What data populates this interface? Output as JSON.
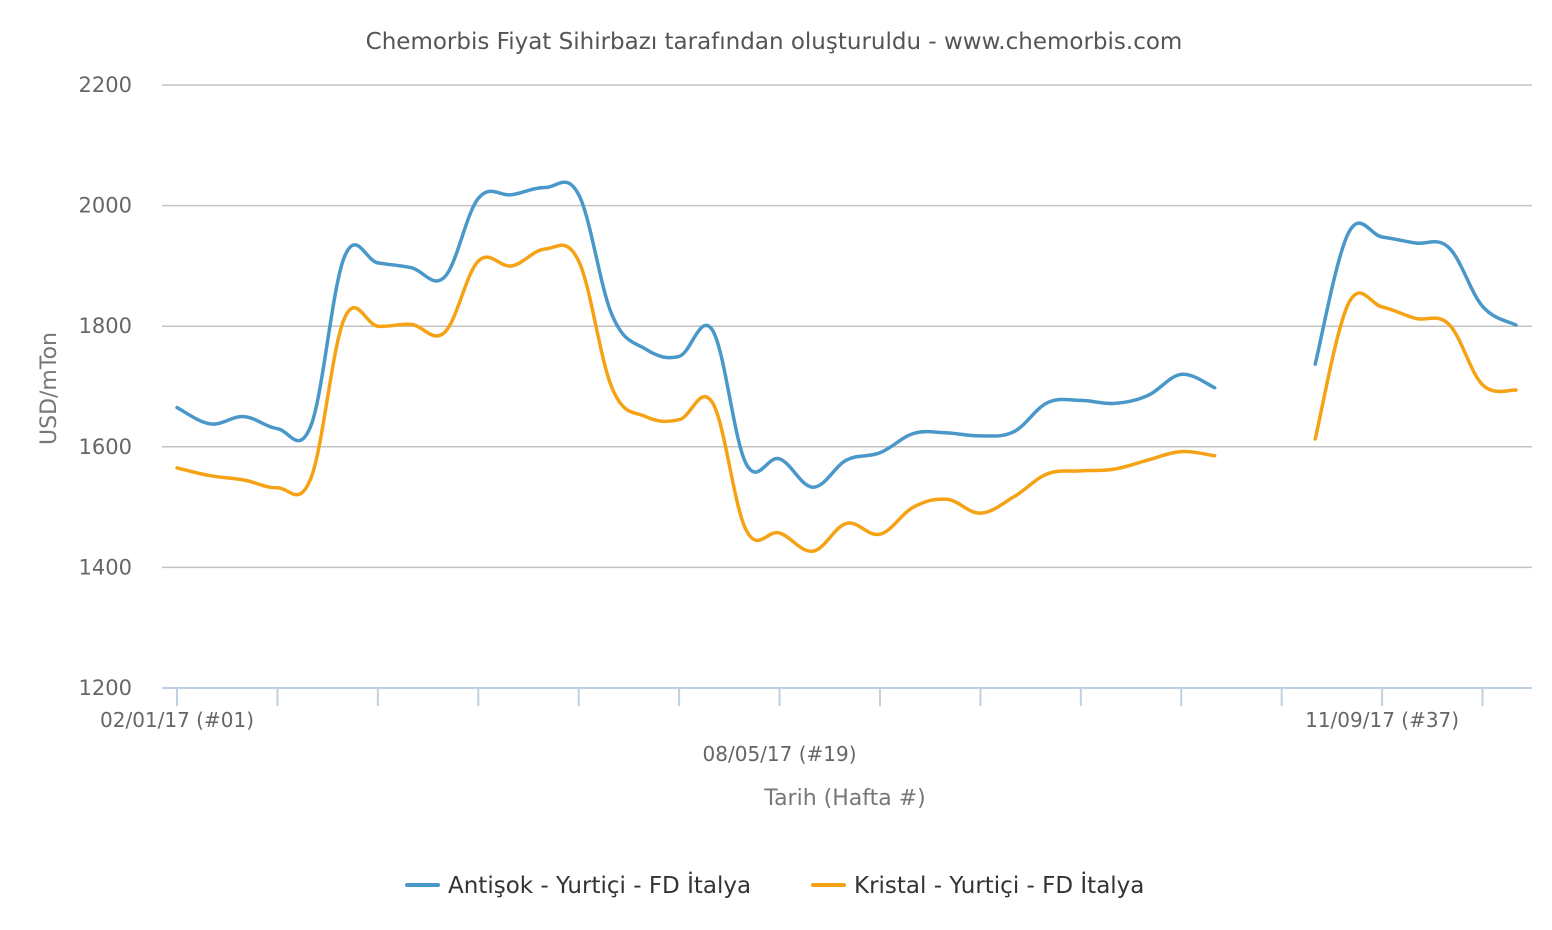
{
  "chart_data": {
    "type": "line",
    "title": "Chemorbis Fiyat Sihirbazı tarafından oluşturuldu - www.chemorbis.com",
    "xlabel": "Tarih (Hafta #)",
    "ylabel": "USD/mTon",
    "ylim": [
      1200,
      2200
    ],
    "yticks": [
      1200,
      1400,
      1600,
      1800,
      2000,
      2200
    ],
    "grid": true,
    "legend_position": "bottom",
    "x_start_label": "02/01/17 (#01)",
    "x_tick_labels": [
      {
        "week": 1,
        "label": "02/01/17 (#01)"
      },
      {
        "week": 19,
        "label": "08/05/17 (#19)"
      },
      {
        "week": 37,
        "label": "11/09/17 (#37)"
      }
    ],
    "x_ticks_weeks": [
      1,
      4,
      7,
      10,
      13,
      16,
      19,
      22,
      25,
      28,
      31,
      34,
      37,
      40
    ],
    "x_range_weeks": [
      1,
      41
    ],
    "series": [
      {
        "name": "Antişok - Yurtiçi - FD İtalya",
        "color": "#4a98c9",
        "points": [
          [
            1,
            1665
          ],
          [
            2,
            1638
          ],
          [
            3,
            1650
          ],
          [
            4,
            1630
          ],
          [
            5,
            1635
          ],
          [
            6,
            1915
          ],
          [
            7,
            1905
          ],
          [
            8,
            1897
          ],
          [
            9,
            1882
          ],
          [
            10,
            2012
          ],
          [
            11,
            2018
          ],
          [
            12,
            2030
          ],
          [
            13,
            2018
          ],
          [
            14,
            1818
          ],
          [
            15,
            1762
          ],
          [
            16,
            1750
          ],
          [
            17,
            1793
          ],
          [
            18,
            1572
          ],
          [
            19,
            1580
          ],
          [
            20,
            1533
          ],
          [
            21,
            1578
          ],
          [
            22,
            1590
          ],
          [
            23,
            1622
          ],
          [
            24,
            1623
          ],
          [
            25,
            1618
          ],
          [
            26,
            1625
          ],
          [
            27,
            1673
          ],
          [
            28,
            1677
          ],
          [
            29,
            1672
          ],
          [
            30,
            1685
          ],
          [
            31,
            1720
          ],
          [
            32,
            1698
          ],
          null,
          [
            35,
            1737
          ],
          [
            36,
            1955
          ],
          [
            37,
            1948
          ],
          [
            38,
            1938
          ],
          [
            39,
            1930
          ],
          [
            40,
            1833
          ],
          [
            41,
            1802
          ]
        ]
      },
      {
        "name": "Kristal - Yurtiçi - FD İtalya",
        "color": "#f5a314",
        "points": [
          [
            1,
            1565
          ],
          [
            2,
            1552
          ],
          [
            3,
            1545
          ],
          [
            4,
            1532
          ],
          [
            5,
            1548
          ],
          [
            6,
            1813
          ],
          [
            7,
            1800
          ],
          [
            8,
            1803
          ],
          [
            9,
            1790
          ],
          [
            10,
            1908
          ],
          [
            11,
            1900
          ],
          [
            12,
            1928
          ],
          [
            13,
            1908
          ],
          [
            14,
            1697
          ],
          [
            15,
            1650
          ],
          [
            16,
            1645
          ],
          [
            17,
            1673
          ],
          [
            18,
            1462
          ],
          [
            19,
            1457
          ],
          [
            20,
            1427
          ],
          [
            21,
            1473
          ],
          [
            22,
            1455
          ],
          [
            23,
            1500
          ],
          [
            24,
            1513
          ],
          [
            25,
            1490
          ],
          [
            26,
            1517
          ],
          [
            27,
            1555
          ],
          [
            28,
            1560
          ],
          [
            29,
            1563
          ],
          [
            30,
            1578
          ],
          [
            31,
            1592
          ],
          [
            32,
            1585
          ],
          null,
          [
            35,
            1613
          ],
          [
            36,
            1838
          ],
          [
            37,
            1832
          ],
          [
            38,
            1813
          ],
          [
            39,
            1803
          ],
          [
            40,
            1703
          ],
          [
            41,
            1694
          ]
        ]
      }
    ]
  }
}
